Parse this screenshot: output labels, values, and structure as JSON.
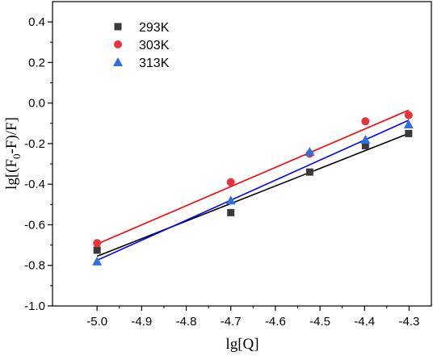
{
  "chart_data": {
    "type": "scatter",
    "xlabel": "lg[Q]",
    "ylabel_parts": [
      "lg[(F",
      "0",
      "-F)/F]"
    ],
    "xlim": [
      -5.1,
      -4.25
    ],
    "ylim": [
      -1.0,
      0.5
    ],
    "x_ticks": [
      -5.0,
      -4.9,
      -4.8,
      -4.7,
      -4.6,
      -4.5,
      -4.4,
      -4.3
    ],
    "x_tick_labels": [
      "-5.0",
      "-4.9",
      "-4.8",
      "-4.7",
      "-4.6",
      "-4.5",
      "-4.4",
      "-4.3"
    ],
    "y_ticks": [
      -1.0,
      -0.8,
      -0.6,
      -0.4,
      -0.2,
      0.0,
      0.2,
      0.4
    ],
    "y_tick_labels": [
      "-1.0",
      "-0.8",
      "-0.6",
      "-0.4",
      "-0.2",
      "0.0",
      "0.2",
      "0.4"
    ],
    "legend_position": "top-left",
    "series": [
      {
        "name": "293K",
        "marker": "square",
        "color": "#3a3a3a",
        "line_color": "#000000",
        "x": [
          -5.0,
          -4.7,
          -4.523,
          -4.398,
          -4.301
        ],
        "y": [
          -0.725,
          -0.54,
          -0.34,
          -0.21,
          -0.15
        ],
        "fit": {
          "x": [
            -5.0,
            -4.301
          ],
          "y": [
            -0.755,
            -0.15
          ]
        }
      },
      {
        "name": "303K",
        "marker": "circle",
        "color": "#e8343a",
        "line_color": "#ff0000",
        "x": [
          -5.0,
          -4.7,
          -4.523,
          -4.398,
          -4.301
        ],
        "y": [
          -0.69,
          -0.39,
          -0.25,
          -0.09,
          -0.06
        ],
        "fit": {
          "x": [
            -5.0,
            -4.301
          ],
          "y": [
            -0.695,
            -0.035
          ]
        }
      },
      {
        "name": "313K",
        "marker": "triangle",
        "color": "#2f6fe0",
        "line_color": "#0000ff",
        "x": [
          -5.0,
          -4.7,
          -4.523,
          -4.398,
          -4.301
        ],
        "y": [
          -0.78,
          -0.48,
          -0.24,
          -0.18,
          -0.105
        ],
        "fit": {
          "x": [
            -5.0,
            -4.301
          ],
          "y": [
            -0.775,
            -0.085
          ]
        }
      }
    ]
  }
}
